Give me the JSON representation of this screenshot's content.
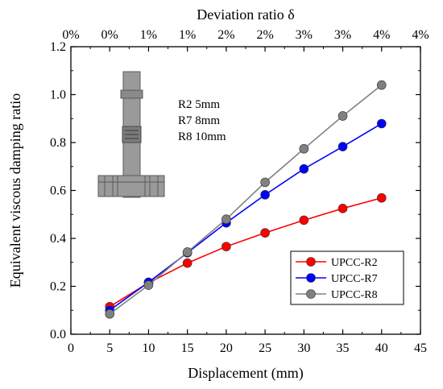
{
  "chart_data": {
    "type": "line",
    "xlabel": "Displacement (mm)",
    "ylabel": "Equivalent viscous damping ratio",
    "x2label": "Deviation ratio δ",
    "xlim": [
      0,
      45
    ],
    "ylim": [
      0.0,
      1.2
    ],
    "xticks": [
      0,
      5,
      10,
      15,
      20,
      25,
      30,
      35,
      40,
      45
    ],
    "yticks": [
      0.0,
      0.2,
      0.4,
      0.6,
      0.8,
      1.0,
      1.2
    ],
    "x2ticks": [
      "0%",
      "0%",
      "1%",
      "1%",
      "2%",
      "2%",
      "3%",
      "3%",
      "4%",
      "4%"
    ],
    "x": [
      5,
      10,
      15,
      20,
      25,
      30,
      35,
      40
    ],
    "series": [
      {
        "name": "UPCC-R2",
        "color": "#ff0000",
        "values": [
          0.115,
          0.215,
          0.297,
          0.366,
          0.423,
          0.476,
          0.525,
          0.569
        ]
      },
      {
        "name": "UPCC-R7",
        "color": "#0000ff",
        "values": [
          0.1,
          0.217,
          0.34,
          0.465,
          0.582,
          0.69,
          0.783,
          0.879
        ]
      },
      {
        "name": "UPCC-R8",
        "color": "#808080",
        "values": [
          0.085,
          0.205,
          0.343,
          0.48,
          0.634,
          0.774,
          0.911,
          1.04
        ]
      }
    ],
    "annotations": [
      "R2 5mm",
      "R7 8mm",
      "R8 10mm"
    ],
    "legend_position": "bottom-right",
    "grid": false
  }
}
